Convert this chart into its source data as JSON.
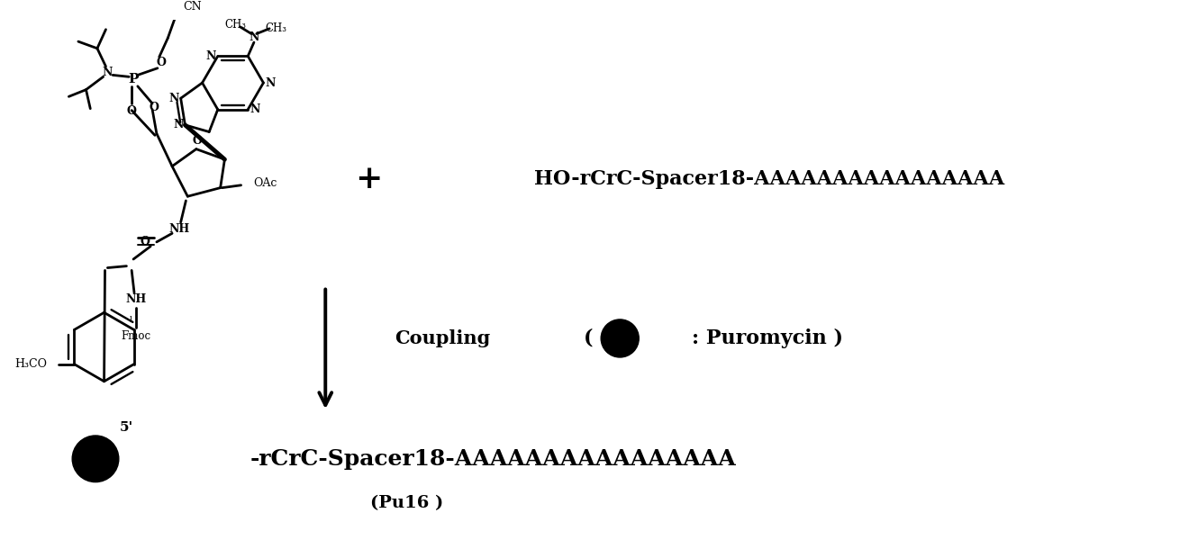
{
  "background_color": "#ffffff",
  "figure_width": 13.2,
  "figure_height": 6.0,
  "dpi": 100,
  "plus_text": "+",
  "ho_text": "HO-rCrC-Spacer18-AAAAAAAAAAAAAAAA",
  "coupling_text": "Coupling",
  "puromycin_text": "( Ⓟ : Puromycin )",
  "product_label_5prime": "5'",
  "product_sequence": "-rCrC-Spacer18-AAAAAAAAAAAAAAAA",
  "product_name": "(Pu16 )"
}
